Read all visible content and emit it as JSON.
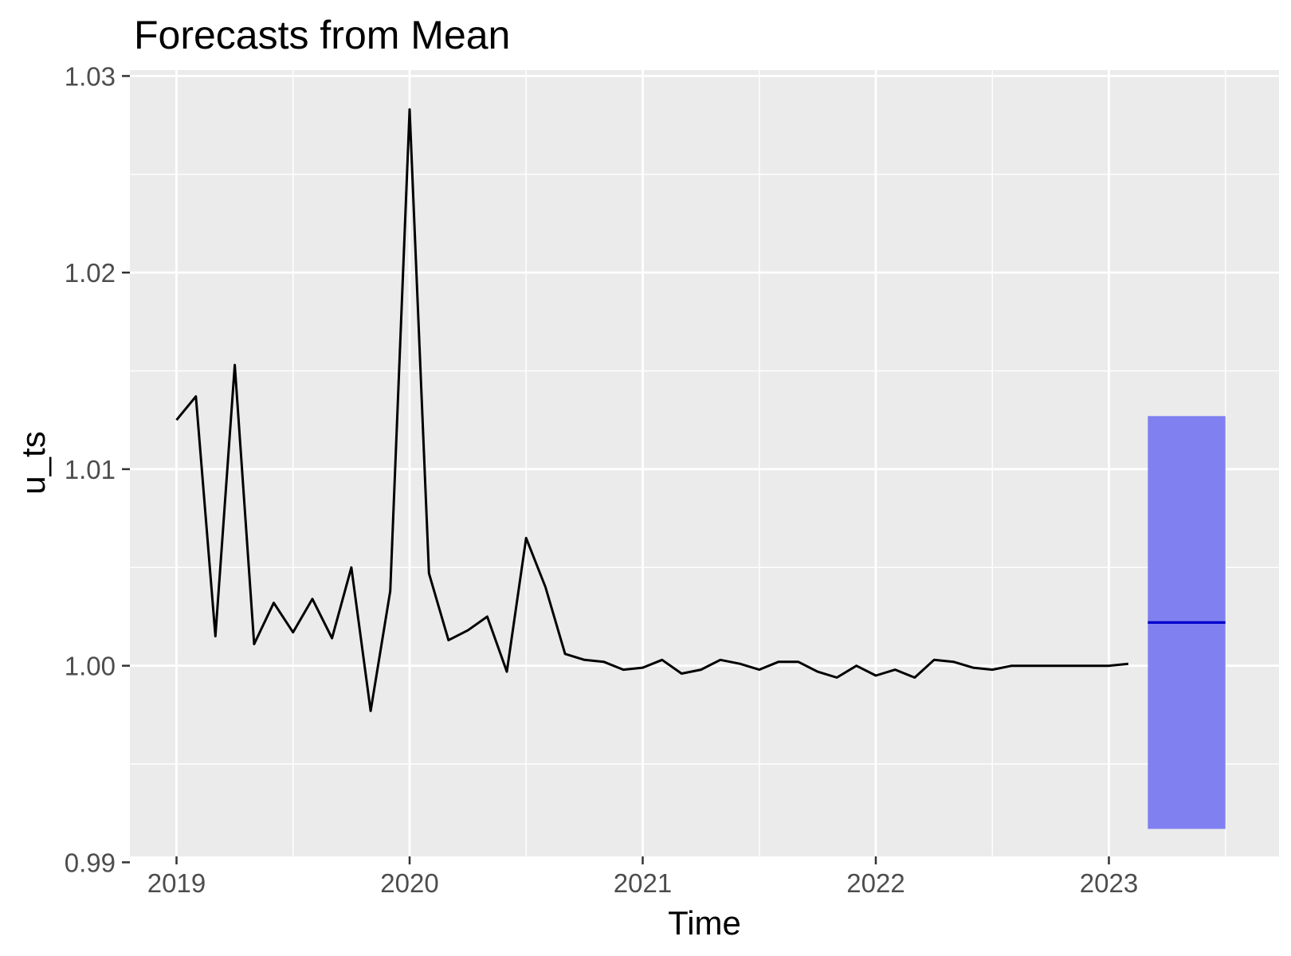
{
  "chart_data": {
    "type": "line",
    "title": "Forecasts from Mean",
    "xlabel": "Time",
    "ylabel": "u_ts",
    "xlim": [
      2018.8,
      2023.73
    ],
    "ylim": [
      0.9903,
      1.0303
    ],
    "x_ticks": [
      2019,
      2020,
      2021,
      2022,
      2023
    ],
    "y_ticks": [
      0.99,
      1.0,
      1.01,
      1.02,
      1.03
    ],
    "y_tick_labels": [
      "0.99",
      "1.00",
      "1.01",
      "1.02",
      "1.03"
    ],
    "x_tick_labels": [
      "2019",
      "2020",
      "2021",
      "2022",
      "2023"
    ],
    "grid": true,
    "legend": "none",
    "colors": {
      "panel_background": "#ebebeb",
      "grid": "#ffffff",
      "series": "#000000",
      "forecast_mean": "#0000cc",
      "forecast_interval": "#8080f0"
    },
    "series": [
      {
        "x": [
          2019.0,
          2019.083,
          2019.167,
          2019.25,
          2019.333,
          2019.417,
          2019.5,
          2019.583,
          2019.667,
          2019.75,
          2019.833,
          2019.917,
          2020.0,
          2020.083,
          2020.167,
          2020.25,
          2020.333,
          2020.417,
          2020.5,
          2020.583,
          2020.667,
          2020.75,
          2020.833,
          2020.917,
          2021.0,
          2021.083,
          2021.167,
          2021.25,
          2021.333,
          2021.417,
          2021.5,
          2021.583,
          2021.667,
          2021.75,
          2021.833,
          2021.917,
          2022.0,
          2022.083,
          2022.167,
          2022.25,
          2022.333,
          2022.417,
          2022.5,
          2022.583,
          2022.667,
          2022.75,
          2022.833,
          2022.917,
          2023.0,
          2023.083
        ],
        "values": [
          1.0125,
          1.0137,
          1.0015,
          1.0153,
          1.0011,
          1.0032,
          1.0017,
          1.0034,
          1.0014,
          1.005,
          0.9977,
          1.0038,
          1.0283,
          1.0047,
          1.0013,
          1.0018,
          1.0025,
          0.9997,
          1.0065,
          1.004,
          1.0006,
          1.0003,
          1.0002,
          0.9998,
          0.9999,
          1.0003,
          0.9996,
          0.9998,
          1.0003,
          1.0001,
          0.9998,
          1.0002,
          1.0002,
          0.9997,
          0.9994,
          1.0,
          0.9995,
          0.9998,
          0.9994,
          1.0003,
          1.0002,
          0.9999,
          0.9998,
          1.0,
          1.0,
          1.0,
          1.0,
          1.0,
          1.0,
          1.0001
        ]
      }
    ],
    "forecast": {
      "x_start": 2023.167,
      "x_end": 2023.5,
      "mean": 1.0022,
      "lower": 0.9917,
      "upper": 1.0127
    }
  }
}
